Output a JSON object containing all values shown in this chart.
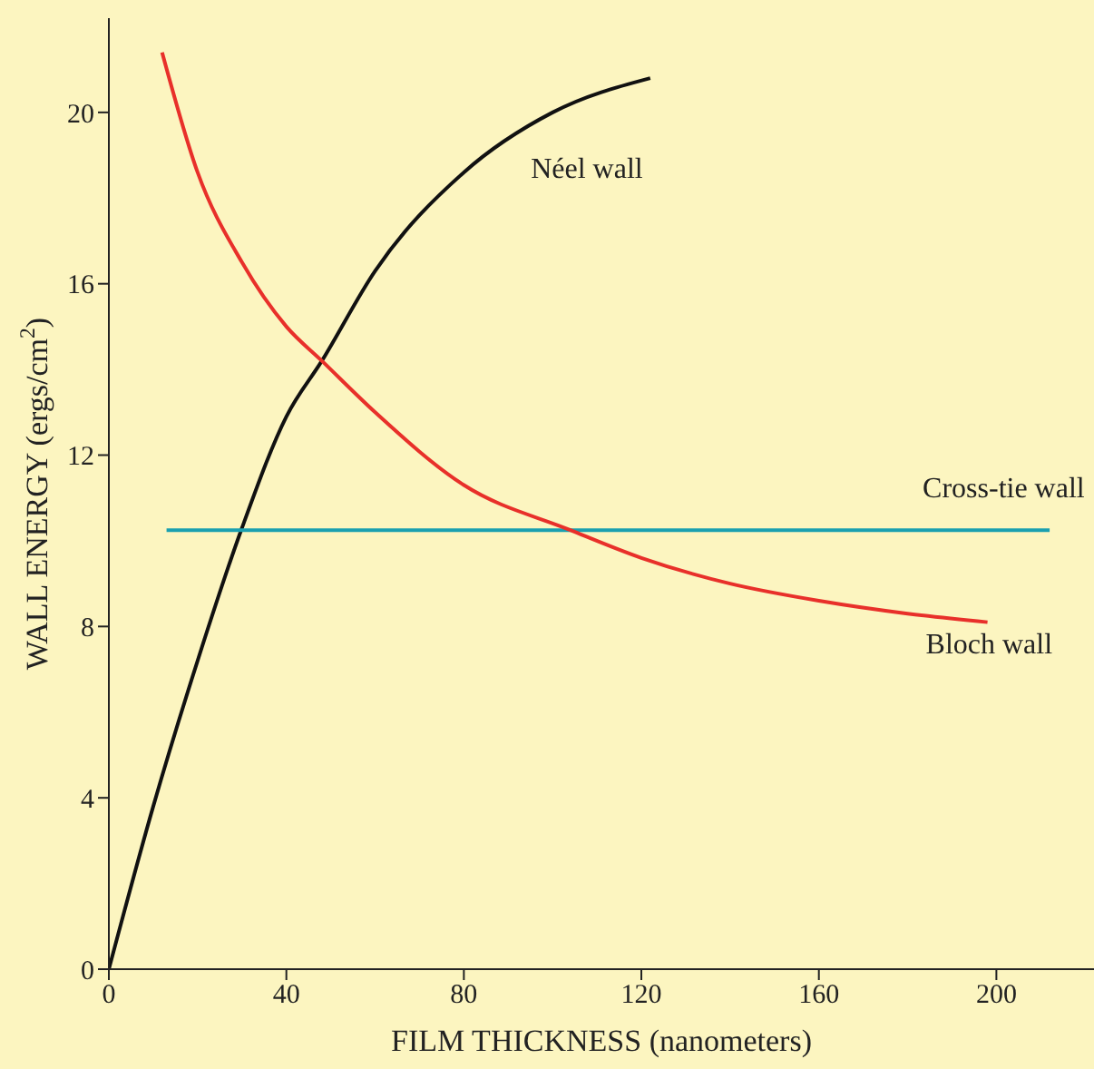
{
  "chart_data": {
    "type": "line",
    "xlabel": "FILM THICKNESS (nanometers)",
    "ylabel": "WALL ENERGY (ergs/cm$^{2}$)",
    "xlim": [
      0,
      222
    ],
    "ylim": [
      0,
      22.2
    ],
    "xticks": [
      0,
      40,
      80,
      120,
      160,
      200
    ],
    "yticks": [
      0,
      4,
      8,
      12,
      16,
      20
    ],
    "grid": false,
    "legend": false,
    "marker": "none",
    "line_style": "solid",
    "series": [
      {
        "name": "Néel wall",
        "color": "#111111",
        "x": [
          0,
          10,
          20,
          30,
          40,
          48,
          60,
          80,
          100,
          122
        ],
        "values": [
          0,
          3.8,
          7.2,
          10.3,
          12.9,
          14.2,
          16.3,
          18.6,
          20.0,
          20.8
        ]
      },
      {
        "name": "Cross-tie wall",
        "color": "#1aa0b0",
        "x": [
          13,
          212
        ],
        "values": [
          10.25,
          10.25
        ]
      },
      {
        "name": "Bloch wall",
        "color": "#e8302a",
        "x": [
          12,
          20,
          30,
          40,
          48,
          60,
          80,
          104,
          120,
          140,
          160,
          180,
          198
        ],
        "values": [
          21.4,
          18.6,
          16.5,
          15.0,
          14.2,
          13.0,
          11.3,
          10.25,
          9.6,
          9.0,
          8.6,
          8.3,
          8.1
        ]
      }
    ]
  }
}
